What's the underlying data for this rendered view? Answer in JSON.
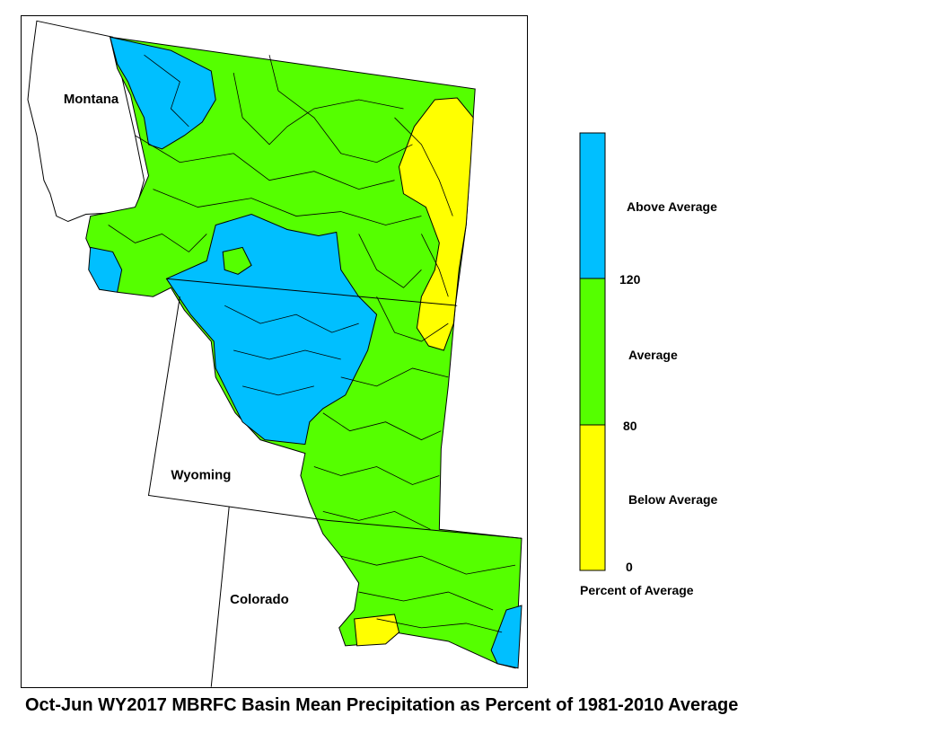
{
  "title": "Oct-Jun WY2017 MBRFC Basin Mean Precipitation as Percent of 1981-2010 Average",
  "states": {
    "montana": "Montana",
    "wyoming": "Wyoming",
    "colorado": "Colorado"
  },
  "legend": {
    "title": "Percent of Average",
    "categories": [
      {
        "label": "Above Average",
        "color": "#00bfff",
        "range": [
          120,
          null
        ]
      },
      {
        "label": "Average",
        "color": "#55ff00",
        "range": [
          80,
          120
        ]
      },
      {
        "label": "Below Average",
        "color": "#ffff00",
        "range": [
          0,
          80
        ]
      }
    ],
    "ticks": [
      "120",
      "80",
      "0"
    ]
  },
  "colors": {
    "above": "#00bfff",
    "average": "#55ff00",
    "below": "#ffff00",
    "boundary": "#000000"
  }
}
